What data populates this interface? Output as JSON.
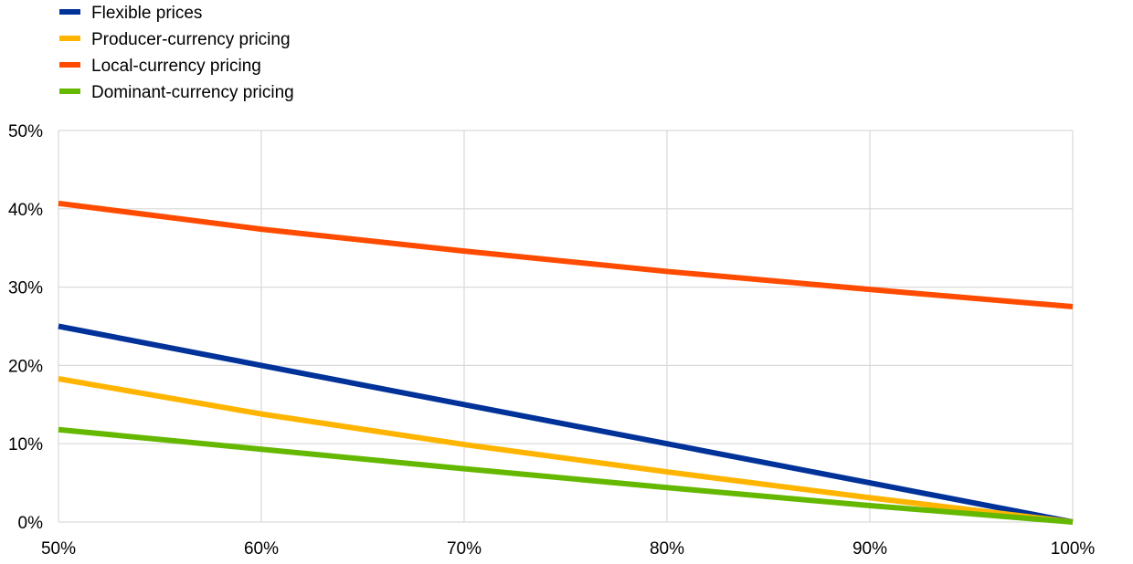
{
  "chart_data": {
    "type": "line",
    "title": "",
    "xlabel": "",
    "ylabel": "",
    "x": [
      50,
      60,
      70,
      80,
      90,
      100
    ],
    "x_tick_labels": [
      "50%",
      "60%",
      "70%",
      "80%",
      "90%",
      "100%"
    ],
    "y_tick_labels": [
      "0%",
      "10%",
      "20%",
      "30%",
      "40%",
      "50%"
    ],
    "xlim": [
      50,
      100
    ],
    "ylim": [
      0,
      50
    ],
    "grid": true,
    "legend_position": "top-left",
    "series": [
      {
        "name": "Flexible prices",
        "color": "#003299",
        "values": [
          25.0,
          20.0,
          15.0,
          10.0,
          5.0,
          0.0
        ]
      },
      {
        "name": "Producer-currency pricing",
        "color": "#FFB400",
        "values": [
          18.3,
          13.8,
          9.9,
          6.4,
          3.1,
          0.0
        ]
      },
      {
        "name": "Local-currency pricing",
        "color": "#FF4B00",
        "values": [
          40.7,
          37.4,
          34.6,
          32.0,
          29.7,
          27.5
        ]
      },
      {
        "name": "Dominant-currency pricing",
        "color": "#65B800",
        "values": [
          11.8,
          9.3,
          6.8,
          4.4,
          2.1,
          0.0
        ]
      }
    ]
  }
}
